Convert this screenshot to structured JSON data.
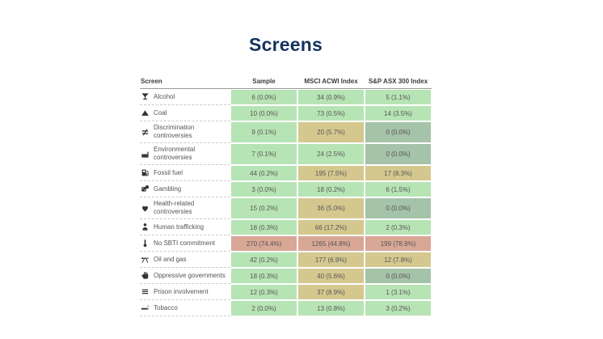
{
  "title": "Screens",
  "colors": {
    "title_text": "#14335c",
    "green": "#b7e4b4",
    "tan": "#d5c88f",
    "gray_green": "#a5c3a9",
    "salmon": "#d8a795",
    "header_rule": "#9a9a9a",
    "cell_text": "#555555"
  },
  "chart_data": {
    "type": "table",
    "title": "Screens",
    "columns": [
      "Screen",
      "Sample",
      "MSCI ACWI Index",
      "S&P ASX 300 Index"
    ],
    "rows": [
      {
        "screen": "Alcohol",
        "icon": "martini-glass-icon",
        "values": [
          "6 (0.0%)",
          "34 (0.9%)",
          "5 (1.1%)"
        ],
        "cell_colors": [
          "green",
          "green",
          "green"
        ]
      },
      {
        "screen": "Coal",
        "icon": "coal-heap-icon",
        "values": [
          "10 (0.0%)",
          "73 (0.5%)",
          "14 (3.5%)"
        ],
        "cell_colors": [
          "green",
          "green",
          "green"
        ]
      },
      {
        "screen": "Discrimination controversies",
        "icon": "inequality-icon",
        "values": [
          "9 (0.1%)",
          "20 (5.7%)",
          "0 (0.0%)"
        ],
        "cell_colors": [
          "green",
          "tan",
          "gray_green"
        ]
      },
      {
        "screen": "Environmental controversies",
        "icon": "factory-icon",
        "values": [
          "7 (0.1%)",
          "24 (2.5%)",
          "0 (0.0%)"
        ],
        "cell_colors": [
          "green",
          "green",
          "gray_green"
        ]
      },
      {
        "screen": "Fossil fuel",
        "icon": "gas-pump-icon",
        "values": [
          "44 (0.2%)",
          "195 (7.5%)",
          "17 (8.3%)"
        ],
        "cell_colors": [
          "green",
          "tan",
          "tan"
        ]
      },
      {
        "screen": "Gambling",
        "icon": "dice-icon",
        "values": [
          "3 (0.0%)",
          "18 (0.2%)",
          "6 (1.5%)"
        ],
        "cell_colors": [
          "green",
          "green",
          "green"
        ]
      },
      {
        "screen": "Health-related controversies",
        "icon": "heart-pill-icon",
        "values": [
          "15 (0.2%)",
          "36 (5.0%)",
          "0 (0.0%)"
        ],
        "cell_colors": [
          "green",
          "tan",
          "gray_green"
        ]
      },
      {
        "screen": "Human trafficking",
        "icon": "person-icon",
        "values": [
          "18 (0.3%)",
          "66 (17.2%)",
          "2 (0.3%)"
        ],
        "cell_colors": [
          "green",
          "tan",
          "green"
        ]
      },
      {
        "screen": "No SBTI commitment",
        "icon": "thermometer-icon",
        "values": [
          "270 (74.4%)",
          "1265 (44.8%)",
          "199 (78.9%)"
        ],
        "cell_colors": [
          "salmon",
          "salmon",
          "salmon"
        ]
      },
      {
        "screen": "Oil and gas",
        "icon": "pumpjack-icon",
        "values": [
          "42 (0.2%)",
          "177 (6.9%)",
          "12 (7.8%)"
        ],
        "cell_colors": [
          "green",
          "tan",
          "tan"
        ]
      },
      {
        "screen": "Oppressive governments",
        "icon": "fist-icon",
        "values": [
          "18 (0.3%)",
          "40 (5.6%)",
          "0 (0.0%)"
        ],
        "cell_colors": [
          "green",
          "tan",
          "gray_green"
        ]
      },
      {
        "screen": "Prison involvement",
        "icon": "prison-bars-icon",
        "values": [
          "12 (0.3%)",
          "37 (8.9%)",
          "1 (3.1%)"
        ],
        "cell_colors": [
          "green",
          "tan",
          "green"
        ]
      },
      {
        "screen": "Tobacco",
        "icon": "cigarette-icon",
        "values": [
          "2 (0.0%)",
          "13 (0.8%)",
          "3 (0.2%)"
        ],
        "cell_colors": [
          "green",
          "green",
          "green"
        ]
      }
    ]
  }
}
